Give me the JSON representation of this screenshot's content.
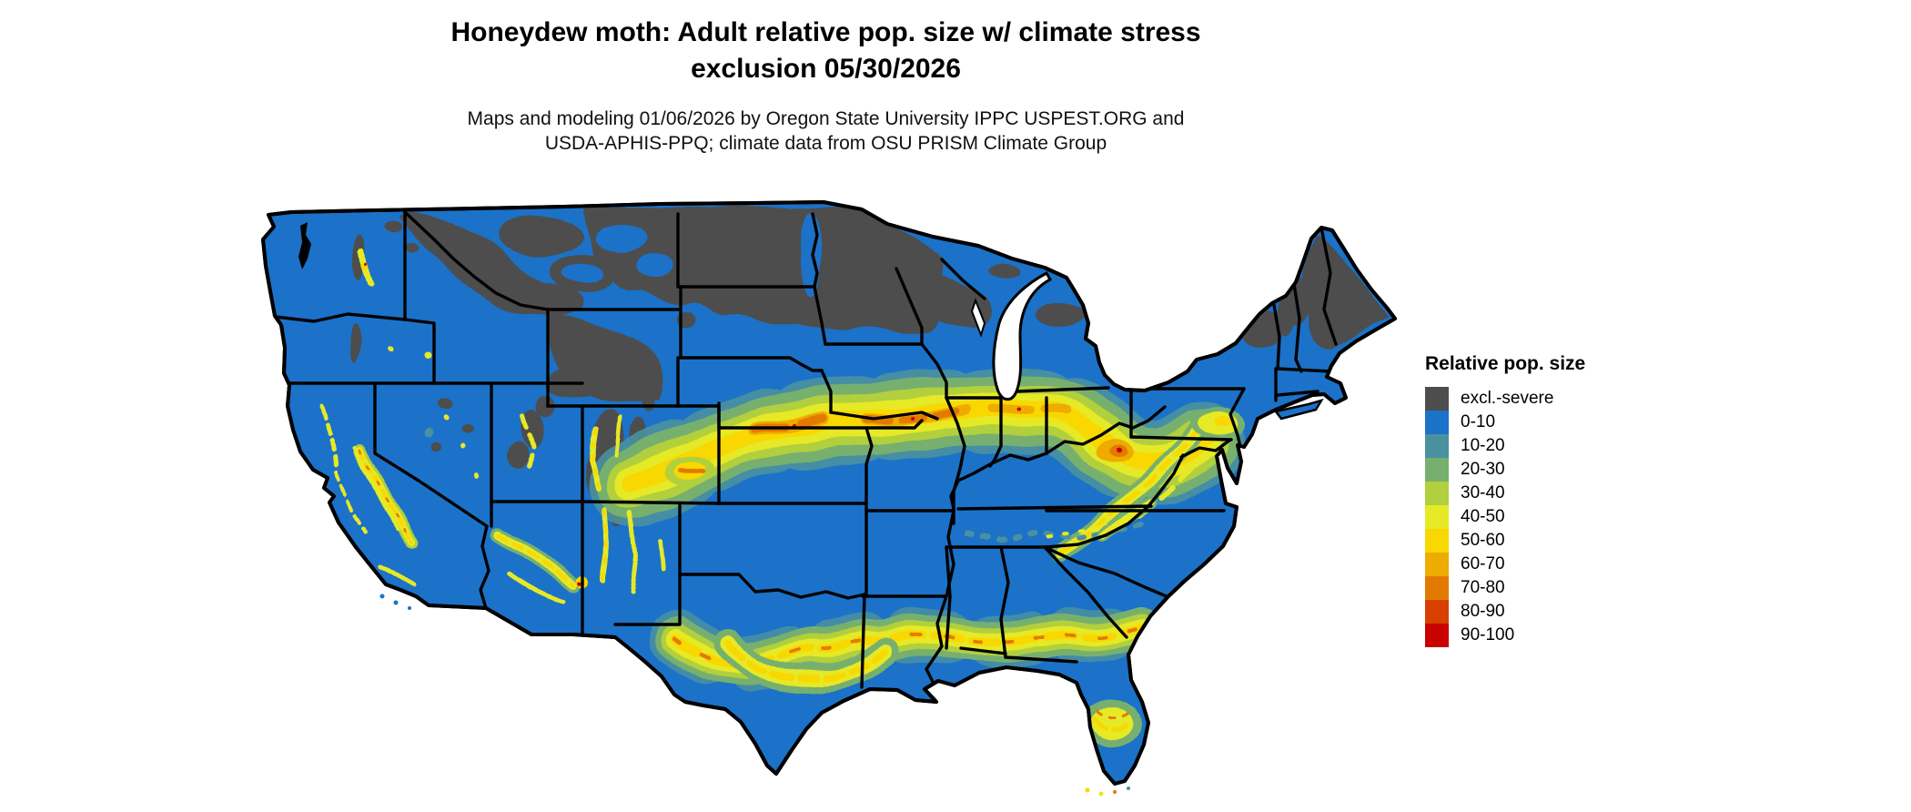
{
  "title": {
    "line1": "Honeydew moth: Adult relative pop. size w/ climate stress",
    "line2": "exclusion 05/30/2026"
  },
  "subtitle": {
    "line1": "Maps and modeling 01/06/2026 by Oregon State University IPPC USPEST.ORG and",
    "line2": "USDA-APHIS-PPQ; climate data from OSU PRISM Climate Group"
  },
  "legend": {
    "title": "Relative pop. size",
    "items": [
      {
        "label": "excl.-severe",
        "color": "#4d4d4d"
      },
      {
        "label": "0-10",
        "color": "#1b72c8"
      },
      {
        "label": "10-20",
        "color": "#4a91a0"
      },
      {
        "label": "20-30",
        "color": "#77b06e"
      },
      {
        "label": "30-40",
        "color": "#b2cf3e"
      },
      {
        "label": "40-50",
        "color": "#e6e926"
      },
      {
        "label": "50-60",
        "color": "#f8d800"
      },
      {
        "label": "60-70",
        "color": "#eeab00"
      },
      {
        "label": "70-80",
        "color": "#e27a00"
      },
      {
        "label": "80-90",
        "color": "#d84000"
      },
      {
        "label": "90-100",
        "color": "#c80000"
      }
    ]
  },
  "map": {
    "border_color": "#000000",
    "water_color": "#ffffff"
  }
}
